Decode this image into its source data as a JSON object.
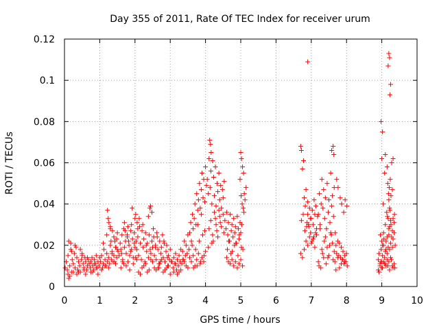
{
  "chart_data": {
    "type": "scatter",
    "title": "Day 355 of 2011, Rate Of TEC Index for receiver urum",
    "xlabel": "GPS time / hours",
    "ylabel": "ROTI / TECUs",
    "xlim": [
      0,
      10
    ],
    "ylim": [
      0,
      0.12
    ],
    "grid": true,
    "marker": "+",
    "color": "#ff0000",
    "xticks": [
      0,
      1,
      2,
      3,
      4,
      5,
      6,
      7,
      8,
      9,
      10
    ],
    "xtick_labels": [
      "0",
      "1",
      "2",
      "3",
      "4",
      "5",
      "6",
      "7",
      "8",
      "9",
      "10"
    ],
    "yticks": [
      0,
      0.02,
      0.04,
      0.06,
      0.08,
      0.1,
      0.12
    ],
    "ytick_labels": [
      "0",
      "0.02",
      "0.04",
      "0.06",
      "0.08",
      "0.1",
      "0.12"
    ],
    "series": [
      {
        "name": "ROTI",
        "x": [
          0.02,
          0.05,
          0.08,
          0.1,
          0.12,
          0.15,
          0.18,
          0.2,
          0.22,
          0.25,
          0.28,
          0.3,
          0.33,
          0.35,
          0.38,
          0.4,
          0.43,
          0.45,
          0.48,
          0.5,
          0.53,
          0.55,
          0.58,
          0.6,
          0.63,
          0.65,
          0.68,
          0.7,
          0.73,
          0.75,
          0.78,
          0.8,
          0.83,
          0.85,
          0.88,
          0.9,
          0.93,
          0.95,
          0.98,
          1.0,
          0.1,
          0.15,
          0.2,
          0.3,
          0.4,
          0.5,
          0.6,
          0.7,
          0.8,
          0.9,
          0.12,
          0.18,
          0.25,
          0.35,
          0.45,
          0.55,
          0.65,
          0.75,
          0.85,
          0.95,
          1.02,
          1.05,
          1.08,
          1.1,
          1.12,
          1.15,
          1.18,
          1.2,
          1.22,
          1.25,
          1.28,
          1.3,
          1.33,
          1.35,
          1.38,
          1.4,
          1.43,
          1.45,
          1.48,
          1.5,
          1.05,
          1.1,
          1.15,
          1.2,
          1.25,
          1.3,
          1.35,
          1.4,
          1.45,
          1.5,
          1.22,
          1.24,
          1.26,
          1.3,
          1.32,
          1.36,
          1.42,
          1.46,
          1.48,
          1.52,
          1.55,
          1.58,
          1.6,
          1.63,
          1.65,
          1.68,
          1.7,
          1.73,
          1.75,
          1.78,
          1.8,
          1.83,
          1.85,
          1.88,
          1.9,
          1.93,
          1.95,
          1.98,
          2.0,
          2.03,
          1.6,
          1.65,
          1.7,
          1.75,
          1.8,
          1.85,
          1.9,
          1.95,
          2.0,
          2.05,
          1.62,
          1.72,
          1.82,
          1.92,
          2.02,
          1.68,
          1.78,
          1.88,
          1.98,
          2.08,
          2.05,
          2.08,
          2.1,
          2.13,
          2.15,
          2.18,
          2.2,
          2.23,
          2.25,
          2.28,
          2.3,
          2.33,
          2.35,
          2.38,
          2.4,
          2.43,
          2.45,
          2.48,
          2.5,
          2.53,
          2.1,
          2.2,
          2.3,
          2.4,
          2.5,
          2.15,
          2.25,
          2.35,
          2.45,
          2.55,
          2.02,
          2.06,
          2.44,
          2.48,
          2.52,
          2.12,
          2.22,
          2.32,
          2.42,
          2.38,
          2.55,
          2.58,
          2.6,
          2.63,
          2.65,
          2.68,
          2.7,
          2.73,
          2.75,
          2.78,
          2.8,
          2.83,
          2.85,
          2.88,
          2.9,
          2.93,
          2.95,
          2.98,
          3.0,
          3.03,
          2.6,
          2.7,
          2.8,
          2.9,
          3.0,
          2.65,
          2.75,
          2.85,
          2.95,
          2.62,
          2.72,
          2.82,
          2.92,
          2.58,
          2.68,
          3.05,
          3.08,
          3.1,
          3.13,
          3.15,
          3.18,
          3.2,
          3.23,
          3.25,
          3.28,
          3.3,
          3.33,
          3.35,
          3.38,
          3.4,
          3.43,
          3.45,
          3.48,
          3.5,
          3.53,
          3.1,
          3.2,
          3.3,
          3.4,
          3.5,
          3.15,
          3.25,
          3.35,
          3.45,
          3.55,
          3.55,
          3.58,
          3.6,
          3.63,
          3.65,
          3.68,
          3.7,
          3.73,
          3.75,
          3.78,
          3.8,
          3.83,
          3.85,
          3.88,
          3.9,
          3.93,
          3.95,
          3.98,
          4.0,
          4.03,
          3.6,
          3.65,
          3.7,
          3.75,
          3.8,
          3.85,
          3.9,
          3.95,
          4.0,
          3.62,
          3.72,
          3.82,
          3.92,
          3.66,
          3.76,
          3.86,
          3.96,
          3.78,
          3.88,
          3.98,
          4.05,
          4.08,
          4.1,
          4.13,
          4.15,
          4.18,
          4.2,
          4.23,
          4.25,
          4.28,
          4.3,
          4.33,
          4.35,
          4.38,
          4.4,
          4.43,
          4.45,
          4.48,
          4.5,
          4.53,
          4.1,
          4.15,
          4.2,
          4.25,
          4.3,
          4.35,
          4.4,
          4.45,
          4.5,
          4.12,
          4.14,
          4.16,
          4.22,
          4.32,
          4.42,
          4.52,
          4.08,
          4.18,
          4.28,
          4.38,
          4.55,
          4.58,
          4.6,
          4.63,
          4.65,
          4.68,
          4.7,
          4.73,
          4.75,
          4.78,
          4.8,
          4.83,
          4.85,
          4.88,
          4.9,
          4.93,
          4.95,
          4.98,
          5.0,
          5.03,
          4.6,
          4.65,
          4.7,
          4.75,
          4.8,
          4.85,
          4.9,
          4.95,
          5.0,
          5.05,
          4.62,
          4.72,
          4.82,
          4.92,
          5.02,
          4.66,
          4.76,
          4.86,
          4.96,
          5.06,
          5.0,
          5.02,
          5.05,
          5.08,
          5.1,
          5.12,
          5.15,
          4.98,
          5.04,
          5.07,
          5.01,
          5.09,
          6.7,
          6.72,
          6.75,
          6.78,
          6.8,
          6.83,
          6.85,
          6.88,
          6.9,
          6.93,
          6.95,
          6.98,
          7.0,
          7.03,
          7.05,
          7.08,
          7.1,
          7.13,
          7.15,
          7.18,
          6.7,
          6.75,
          6.8,
          6.85,
          6.9,
          6.95,
          7.0,
          7.05,
          7.1,
          7.15,
          6.72,
          6.82,
          6.92,
          7.02,
          7.12,
          6.77,
          6.87,
          6.97,
          7.07,
          6.9,
          7.2,
          7.23,
          7.25,
          7.28,
          7.3,
          7.33,
          7.35,
          7.38,
          7.4,
          7.43,
          7.45,
          7.48,
          7.5,
          7.53,
          7.55,
          7.58,
          7.6,
          7.63,
          7.65,
          7.68,
          7.2,
          7.3,
          7.4,
          7.5,
          7.6,
          7.25,
          7.35,
          7.45,
          7.55,
          7.65,
          7.22,
          7.32,
          7.42,
          7.52,
          7.62,
          7.27,
          7.37,
          7.47,
          7.57,
          7.67,
          7.7,
          7.72,
          7.75,
          7.78,
          7.8,
          7.83,
          7.85,
          7.88,
          7.9,
          7.93,
          7.95,
          7.98,
          8.0,
          8.02,
          7.7,
          7.75,
          7.8,
          7.85,
          7.9,
          7.95,
          7.58,
          7.62,
          7.64,
          7.72,
          7.76,
          7.82,
          7.86,
          7.92,
          7.96,
          8.01,
          8.9,
          8.92,
          8.95,
          8.98,
          9.0,
          9.02,
          9.05,
          9.08,
          9.1,
          9.12,
          9.15,
          9.18,
          9.2,
          9.22,
          9.25,
          9.28,
          9.3,
          9.32,
          9.35,
          9.38,
          8.9,
          8.95,
          9.0,
          9.05,
          9.1,
          9.15,
          9.2,
          9.25,
          9.3,
          9.35,
          8.92,
          9.02,
          9.12,
          9.22,
          9.32,
          8.97,
          9.07,
          9.17,
          9.27,
          9.37,
          9.0,
          9.05,
          9.1,
          9.15,
          9.2,
          9.25,
          9.3,
          9.35,
          9.02,
          9.12,
          9.22,
          9.32,
          8.96,
          9.06,
          9.16,
          9.26,
          9.36,
          8.98,
          9.0,
          9.02,
          9.08,
          9.1,
          9.15,
          9.17,
          9.19,
          9.2,
          9.21,
          9.22,
          9.24,
          9.26,
          9.28,
          9.3,
          9.32,
          9.04,
          9.14,
          9.18,
          9.23,
          6.9,
          9.2,
          9.22,
          9.18,
          9.25,
          9.23
        ],
        "y": [
          0.009,
          0.012,
          0.008,
          0.015,
          0.022,
          0.01,
          0.018,
          0.007,
          0.013,
          0.011,
          0.016,
          0.009,
          0.019,
          0.014,
          0.008,
          0.012,
          0.01,
          0.007,
          0.013,
          0.015,
          0.011,
          0.009,
          0.014,
          0.012,
          0.008,
          0.01,
          0.013,
          0.011,
          0.009,
          0.012,
          0.014,
          0.01,
          0.008,
          0.013,
          0.011,
          0.015,
          0.009,
          0.012,
          0.01,
          0.014,
          0.006,
          0.005,
          0.017,
          0.02,
          0.007,
          0.016,
          0.006,
          0.011,
          0.007,
          0.009,
          0.004,
          0.021,
          0.007,
          0.006,
          0.018,
          0.008,
          0.014,
          0.007,
          0.011,
          0.006,
          0.012,
          0.015,
          0.009,
          0.011,
          0.018,
          0.013,
          0.01,
          0.016,
          0.012,
          0.014,
          0.011,
          0.02,
          0.013,
          0.017,
          0.012,
          0.015,
          0.022,
          0.019,
          0.014,
          0.018,
          0.008,
          0.021,
          0.01,
          0.025,
          0.009,
          0.028,
          0.016,
          0.024,
          0.011,
          0.026,
          0.037,
          0.033,
          0.031,
          0.029,
          0.022,
          0.027,
          0.012,
          0.019,
          0.023,
          0.017,
          0.015,
          0.021,
          0.018,
          0.025,
          0.013,
          0.028,
          0.019,
          0.022,
          0.016,
          0.024,
          0.012,
          0.02,
          0.015,
          0.027,
          0.018,
          0.023,
          0.014,
          0.026,
          0.019,
          0.022,
          0.009,
          0.012,
          0.031,
          0.01,
          0.029,
          0.008,
          0.03,
          0.011,
          0.033,
          0.013,
          0.016,
          0.027,
          0.022,
          0.038,
          0.014,
          0.011,
          0.025,
          0.017,
          0.021,
          0.028,
          0.018,
          0.024,
          0.015,
          0.029,
          0.021,
          0.013,
          0.027,
          0.019,
          0.023,
          0.012,
          0.026,
          0.017,
          0.021,
          0.014,
          0.025,
          0.018,
          0.016,
          0.022,
          0.019,
          0.024,
          0.007,
          0.009,
          0.011,
          0.008,
          0.012,
          0.006,
          0.01,
          0.007,
          0.013,
          0.009,
          0.035,
          0.031,
          0.039,
          0.036,
          0.028,
          0.033,
          0.03,
          0.02,
          0.038,
          0.034,
          0.015,
          0.02,
          0.013,
          0.024,
          0.018,
          0.011,
          0.022,
          0.016,
          0.019,
          0.025,
          0.014,
          0.021,
          0.012,
          0.017,
          0.02,
          0.01,
          0.015,
          0.013,
          0.018,
          0.012,
          0.008,
          0.011,
          0.007,
          0.009,
          0.006,
          0.009,
          0.013,
          0.008,
          0.01,
          0.026,
          0.012,
          0.022,
          0.014,
          0.019,
          0.009,
          0.012,
          0.009,
          0.014,
          0.011,
          0.016,
          0.008,
          0.013,
          0.01,
          0.015,
          0.012,
          0.018,
          0.011,
          0.017,
          0.013,
          0.022,
          0.015,
          0.02,
          0.016,
          0.025,
          0.018,
          0.007,
          0.006,
          0.008,
          0.012,
          0.009,
          0.011,
          0.007,
          0.013,
          0.01,
          0.014,
          0.026,
          0.031,
          0.022,
          0.035,
          0.028,
          0.033,
          0.04,
          0.03,
          0.045,
          0.037,
          0.042,
          0.05,
          0.038,
          0.047,
          0.055,
          0.043,
          0.052,
          0.041,
          0.058,
          0.049,
          0.012,
          0.015,
          0.01,
          0.013,
          0.016,
          0.011,
          0.014,
          0.012,
          0.017,
          0.02,
          0.018,
          0.022,
          0.025,
          0.009,
          0.01,
          0.012,
          0.015,
          0.03,
          0.035,
          0.027,
          0.052,
          0.045,
          0.062,
          0.048,
          0.056,
          0.04,
          0.061,
          0.053,
          0.044,
          0.058,
          0.039,
          0.05,
          0.046,
          0.055,
          0.042,
          0.049,
          0.038,
          0.047,
          0.043,
          0.051,
          0.028,
          0.032,
          0.025,
          0.036,
          0.03,
          0.024,
          0.034,
          0.029,
          0.035,
          0.071,
          0.069,
          0.065,
          0.022,
          0.027,
          0.031,
          0.026,
          0.019,
          0.021,
          0.033,
          0.037,
          0.032,
          0.028,
          0.036,
          0.025,
          0.031,
          0.022,
          0.035,
          0.027,
          0.03,
          0.024,
          0.033,
          0.026,
          0.029,
          0.021,
          0.034,
          0.028,
          0.023,
          0.031,
          0.026,
          0.03,
          0.014,
          0.012,
          0.011,
          0.013,
          0.01,
          0.012,
          0.009,
          0.011,
          0.013,
          0.01,
          0.018,
          0.016,
          0.02,
          0.015,
          0.019,
          0.022,
          0.017,
          0.021,
          0.025,
          0.018,
          0.065,
          0.062,
          0.058,
          0.055,
          0.045,
          0.042,
          0.048,
          0.052,
          0.04,
          0.038,
          0.044,
          0.036,
          0.068,
          0.066,
          0.057,
          0.061,
          0.043,
          0.039,
          0.047,
          0.031,
          0.035,
          0.029,
          0.038,
          0.026,
          0.033,
          0.037,
          0.03,
          0.042,
          0.035,
          0.039,
          0.028,
          0.034,
          0.016,
          0.014,
          0.018,
          0.022,
          0.02,
          0.024,
          0.021,
          0.023,
          0.019,
          0.025,
          0.032,
          0.027,
          0.03,
          0.022,
          0.026,
          0.035,
          0.029,
          0.033,
          0.024,
          0.041,
          0.035,
          0.045,
          0.03,
          0.04,
          0.052,
          0.038,
          0.047,
          0.033,
          0.043,
          0.028,
          0.05,
          0.036,
          0.042,
          0.031,
          0.055,
          0.039,
          0.044,
          0.034,
          0.048,
          0.026,
          0.012,
          0.018,
          0.024,
          0.015,
          0.021,
          0.028,
          0.014,
          0.019,
          0.026,
          0.017,
          0.01,
          0.016,
          0.011,
          0.02,
          0.013,
          0.009,
          0.022,
          0.014,
          0.025,
          0.012,
          0.02,
          0.016,
          0.022,
          0.015,
          0.021,
          0.014,
          0.019,
          0.013,
          0.017,
          0.011,
          0.015,
          0.012,
          0.016,
          0.01,
          0.008,
          0.014,
          0.009,
          0.011,
          0.013,
          0.012,
          0.066,
          0.068,
          0.064,
          0.052,
          0.048,
          0.043,
          0.04,
          0.036,
          0.042,
          0.039,
          0.013,
          0.016,
          0.011,
          0.018,
          0.012,
          0.015,
          0.02,
          0.014,
          0.017,
          0.022,
          0.016,
          0.019,
          0.025,
          0.018,
          0.021,
          0.024,
          0.019,
          0.023,
          0.026,
          0.02,
          0.008,
          0.01,
          0.009,
          0.012,
          0.011,
          0.013,
          0.012,
          0.014,
          0.01,
          0.011,
          0.007,
          0.009,
          0.01,
          0.008,
          0.009,
          0.012,
          0.011,
          0.01,
          0.013,
          0.009,
          0.022,
          0.026,
          0.03,
          0.024,
          0.028,
          0.032,
          0.027,
          0.031,
          0.02,
          0.018,
          0.029,
          0.033,
          0.025,
          0.023,
          0.034,
          0.03,
          0.035,
          0.08,
          0.062,
          0.075,
          0.055,
          0.064,
          0.058,
          0.05,
          0.045,
          0.042,
          0.048,
          0.038,
          0.052,
          0.044,
          0.06,
          0.047,
          0.062,
          0.04,
          0.036,
          0.033,
          0.037,
          0.109,
          0.113,
          0.111,
          0.107,
          0.098,
          0.093
        ]
      }
    ]
  }
}
